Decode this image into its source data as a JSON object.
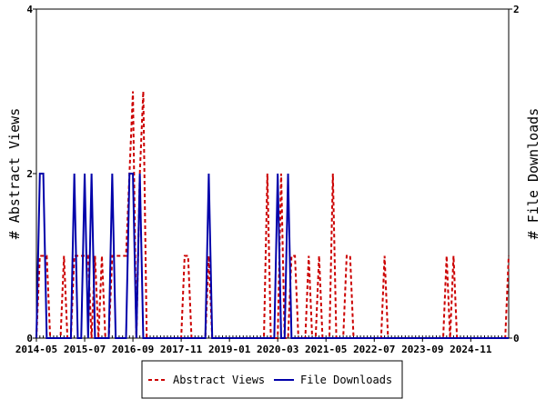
{
  "chart_data": {
    "type": "line",
    "y_left_label": "# Abstract Views",
    "y_right_label": "# File Downloads",
    "y_left_range": [
      0,
      4
    ],
    "y_right_range": [
      0,
      2
    ],
    "y_left_ticks": [
      "0",
      "2",
      "4"
    ],
    "y_right_ticks": [
      "0",
      "1",
      "2"
    ],
    "x_range": [
      "2014-05",
      "2025-10"
    ],
    "x_tick_labels": [
      "2014-05",
      "2015-07",
      "2016-09",
      "2017-11",
      "2019-01",
      "2020-03",
      "2021-05",
      "2022-07",
      "2023-09",
      "2024-11"
    ],
    "legend": [
      "Abstract Views",
      "File Downloads"
    ],
    "series": [
      {
        "name": "Abstract Views",
        "axis": "left",
        "color": "#cc0000",
        "style": "dashed",
        "points": [
          [
            "2014-05",
            0
          ],
          [
            "2014-06",
            1
          ],
          [
            "2014-07",
            1
          ],
          [
            "2014-08",
            1
          ],
          [
            "2014-09",
            0
          ],
          [
            "2014-10",
            0
          ],
          [
            "2014-11",
            0
          ],
          [
            "2014-12",
            0
          ],
          [
            "2015-01",
            1
          ],
          [
            "2015-02",
            0
          ],
          [
            "2015-03",
            0
          ],
          [
            "2015-04",
            1
          ],
          [
            "2015-05",
            1
          ],
          [
            "2015-06",
            1
          ],
          [
            "2015-07",
            1
          ],
          [
            "2015-08",
            1
          ],
          [
            "2015-09",
            0
          ],
          [
            "2015-10",
            1
          ],
          [
            "2015-11",
            0
          ],
          [
            "2015-12",
            1
          ],
          [
            "2016-01",
            0
          ],
          [
            "2016-02",
            0
          ],
          [
            "2016-03",
            1
          ],
          [
            "2016-04",
            1
          ],
          [
            "2016-05",
            1
          ],
          [
            "2016-06",
            1
          ],
          [
            "2016-07",
            1
          ],
          [
            "2016-08",
            2
          ],
          [
            "2016-09",
            3
          ],
          [
            "2016-10",
            0
          ],
          [
            "2016-11",
            2
          ],
          [
            "2016-12",
            3
          ],
          [
            "2017-01",
            0
          ],
          [
            "2017-02",
            0
          ],
          [
            "2017-03",
            0
          ],
          [
            "2017-04",
            0
          ],
          [
            "2017-05",
            0
          ],
          [
            "2017-06",
            0
          ],
          [
            "2017-07",
            0
          ],
          [
            "2017-08",
            0
          ],
          [
            "2017-09",
            0
          ],
          [
            "2017-10",
            0
          ],
          [
            "2017-11",
            0
          ],
          [
            "2017-12",
            1
          ],
          [
            "2018-01",
            1
          ],
          [
            "2018-02",
            0
          ],
          [
            "2018-03",
            0
          ],
          [
            "2018-04",
            0
          ],
          [
            "2018-05",
            0
          ],
          [
            "2018-06",
            0
          ],
          [
            "2018-07",
            1
          ],
          [
            "2018-08",
            0
          ],
          [
            "2018-09",
            0
          ],
          [
            "2018-10",
            0
          ],
          [
            "2018-11",
            0
          ],
          [
            "2018-12",
            0
          ],
          [
            "2019-01",
            0
          ],
          [
            "2019-02",
            0
          ],
          [
            "2019-03",
            0
          ],
          [
            "2019-04",
            0
          ],
          [
            "2019-05",
            0
          ],
          [
            "2019-06",
            0
          ],
          [
            "2019-07",
            0
          ],
          [
            "2019-08",
            0
          ],
          [
            "2019-09",
            0
          ],
          [
            "2019-10",
            0
          ],
          [
            "2019-11",
            0
          ],
          [
            "2019-12",
            2
          ],
          [
            "2020-01",
            0
          ],
          [
            "2020-02",
            0
          ],
          [
            "2020-03",
            0
          ],
          [
            "2020-04",
            2
          ],
          [
            "2020-05",
            0
          ],
          [
            "2020-06",
            0
          ],
          [
            "2020-07",
            1
          ],
          [
            "2020-08",
            1
          ],
          [
            "2020-09",
            0
          ],
          [
            "2020-10",
            0
          ],
          [
            "2020-11",
            0
          ],
          [
            "2020-12",
            1
          ],
          [
            "2021-01",
            0
          ],
          [
            "2021-02",
            0
          ],
          [
            "2021-03",
            1
          ],
          [
            "2021-04",
            0
          ],
          [
            "2021-05",
            0
          ],
          [
            "2021-06",
            0
          ],
          [
            "2021-07",
            2
          ],
          [
            "2021-08",
            0
          ],
          [
            "2021-09",
            0
          ],
          [
            "2021-10",
            0
          ],
          [
            "2021-11",
            1
          ],
          [
            "2021-12",
            1
          ],
          [
            "2022-01",
            0
          ],
          [
            "2022-02",
            0
          ],
          [
            "2022-03",
            0
          ],
          [
            "2022-04",
            0
          ],
          [
            "2022-05",
            0
          ],
          [
            "2022-06",
            0
          ],
          [
            "2022-07",
            0
          ],
          [
            "2022-08",
            0
          ],
          [
            "2022-09",
            0
          ],
          [
            "2022-10",
            1
          ],
          [
            "2022-11",
            0
          ],
          [
            "2022-12",
            0
          ],
          [
            "2023-01",
            0
          ],
          [
            "2023-02",
            0
          ],
          [
            "2023-03",
            0
          ],
          [
            "2023-04",
            0
          ],
          [
            "2023-05",
            0
          ],
          [
            "2023-06",
            0
          ],
          [
            "2023-07",
            0
          ],
          [
            "2023-08",
            0
          ],
          [
            "2023-09",
            0
          ],
          [
            "2023-10",
            0
          ],
          [
            "2023-11",
            0
          ],
          [
            "2023-12",
            0
          ],
          [
            "2024-01",
            0
          ],
          [
            "2024-02",
            0
          ],
          [
            "2024-03",
            0
          ],
          [
            "2024-04",
            1
          ],
          [
            "2024-05",
            0
          ],
          [
            "2024-06",
            1
          ],
          [
            "2024-07",
            0
          ],
          [
            "2024-08",
            0
          ],
          [
            "2024-09",
            0
          ],
          [
            "2024-10",
            0
          ],
          [
            "2024-11",
            0
          ],
          [
            "2024-12",
            0
          ],
          [
            "2025-01",
            0
          ],
          [
            "2025-02",
            0
          ],
          [
            "2025-03",
            0
          ],
          [
            "2025-04",
            0
          ],
          [
            "2025-05",
            0
          ],
          [
            "2025-06",
            0
          ],
          [
            "2025-07",
            0
          ],
          [
            "2025-08",
            0
          ],
          [
            "2025-09",
            0
          ],
          [
            "2025-10",
            1
          ]
        ]
      },
      {
        "name": "File Downloads",
        "axis": "right",
        "color": "#0000aa",
        "style": "solid",
        "points": [
          [
            "2014-05",
            0
          ],
          [
            "2014-06",
            1
          ],
          [
            "2014-07",
            1
          ],
          [
            "2014-08",
            0
          ],
          [
            "2014-09",
            0
          ],
          [
            "2014-10",
            0
          ],
          [
            "2014-11",
            0
          ],
          [
            "2014-12",
            0
          ],
          [
            "2015-01",
            0
          ],
          [
            "2015-02",
            0
          ],
          [
            "2015-03",
            0
          ],
          [
            "2015-04",
            1
          ],
          [
            "2015-05",
            0
          ],
          [
            "2015-06",
            0
          ],
          [
            "2015-07",
            1
          ],
          [
            "2015-08",
            0
          ],
          [
            "2015-09",
            1
          ],
          [
            "2015-10",
            0
          ],
          [
            "2015-11",
            0
          ],
          [
            "2015-12",
            0
          ],
          [
            "2016-01",
            0
          ],
          [
            "2016-02",
            0
          ],
          [
            "2016-03",
            1
          ],
          [
            "2016-04",
            0
          ],
          [
            "2016-05",
            0
          ],
          [
            "2016-06",
            0
          ],
          [
            "2016-07",
            0
          ],
          [
            "2016-08",
            1
          ],
          [
            "2016-09",
            1
          ],
          [
            "2016-10",
            0
          ],
          [
            "2016-11",
            1
          ],
          [
            "2016-12",
            0
          ],
          [
            "2017-01",
            0
          ],
          [
            "2017-02",
            0
          ],
          [
            "2017-03",
            0
          ],
          [
            "2017-04",
            0
          ],
          [
            "2017-05",
            0
          ],
          [
            "2017-06",
            0
          ],
          [
            "2017-07",
            0
          ],
          [
            "2017-08",
            0
          ],
          [
            "2017-09",
            0
          ],
          [
            "2017-10",
            0
          ],
          [
            "2017-11",
            0
          ],
          [
            "2017-12",
            0
          ],
          [
            "2018-01",
            0
          ],
          [
            "2018-02",
            0
          ],
          [
            "2018-03",
            0
          ],
          [
            "2018-04",
            0
          ],
          [
            "2018-05",
            0
          ],
          [
            "2018-06",
            0
          ],
          [
            "2018-07",
            1
          ],
          [
            "2018-08",
            0
          ],
          [
            "2018-09",
            0
          ],
          [
            "2018-10",
            0
          ],
          [
            "2018-11",
            0
          ],
          [
            "2018-12",
            0
          ],
          [
            "2019-01",
            0
          ],
          [
            "2019-02",
            0
          ],
          [
            "2019-03",
            0
          ],
          [
            "2019-04",
            0
          ],
          [
            "2019-05",
            0
          ],
          [
            "2019-06",
            0
          ],
          [
            "2019-07",
            0
          ],
          [
            "2019-08",
            0
          ],
          [
            "2019-09",
            0
          ],
          [
            "2019-10",
            0
          ],
          [
            "2019-11",
            0
          ],
          [
            "2019-12",
            0
          ],
          [
            "2020-01",
            0
          ],
          [
            "2020-02",
            0
          ],
          [
            "2020-03",
            1
          ],
          [
            "2020-04",
            0
          ],
          [
            "2020-05",
            0
          ],
          [
            "2020-06",
            1
          ],
          [
            "2020-07",
            0
          ],
          [
            "2020-08",
            0
          ],
          [
            "2020-09",
            0
          ],
          [
            "2020-10",
            0
          ],
          [
            "2020-11",
            0
          ],
          [
            "2020-12",
            0
          ],
          [
            "2021-01",
            0
          ],
          [
            "2021-02",
            0
          ],
          [
            "2021-03",
            0
          ],
          [
            "2021-04",
            0
          ],
          [
            "2021-05",
            0
          ],
          [
            "2021-06",
            0
          ],
          [
            "2021-07",
            0
          ],
          [
            "2021-08",
            0
          ],
          [
            "2021-09",
            0
          ],
          [
            "2021-10",
            0
          ],
          [
            "2021-11",
            0
          ],
          [
            "2021-12",
            0
          ],
          [
            "2022-01",
            0
          ],
          [
            "2022-02",
            0
          ],
          [
            "2022-03",
            0
          ],
          [
            "2022-04",
            0
          ],
          [
            "2022-05",
            0
          ],
          [
            "2022-06",
            0
          ],
          [
            "2022-07",
            0
          ],
          [
            "2022-08",
            0
          ],
          [
            "2022-09",
            0
          ],
          [
            "2022-10",
            0
          ],
          [
            "2022-11",
            0
          ],
          [
            "2022-12",
            0
          ],
          [
            "2023-01",
            0
          ],
          [
            "2023-02",
            0
          ],
          [
            "2023-03",
            0
          ],
          [
            "2023-04",
            0
          ],
          [
            "2023-05",
            0
          ],
          [
            "2023-06",
            0
          ],
          [
            "2023-07",
            0
          ],
          [
            "2023-08",
            0
          ],
          [
            "2023-09",
            0
          ],
          [
            "2023-10",
            0
          ],
          [
            "2023-11",
            0
          ],
          [
            "2023-12",
            0
          ],
          [
            "2024-01",
            0
          ],
          [
            "2024-02",
            0
          ],
          [
            "2024-03",
            0
          ],
          [
            "2024-04",
            0
          ],
          [
            "2024-05",
            0
          ],
          [
            "2024-06",
            0
          ],
          [
            "2024-07",
            0
          ],
          [
            "2024-08",
            0
          ],
          [
            "2024-09",
            0
          ],
          [
            "2024-10",
            0
          ],
          [
            "2024-11",
            0
          ],
          [
            "2024-12",
            0
          ],
          [
            "2025-01",
            0
          ],
          [
            "2025-02",
            0
          ],
          [
            "2025-03",
            0
          ],
          [
            "2025-04",
            0
          ],
          [
            "2025-05",
            0
          ],
          [
            "2025-06",
            0
          ],
          [
            "2025-07",
            0
          ],
          [
            "2025-08",
            0
          ],
          [
            "2025-09",
            0
          ],
          [
            "2025-10",
            0
          ]
        ]
      }
    ]
  }
}
